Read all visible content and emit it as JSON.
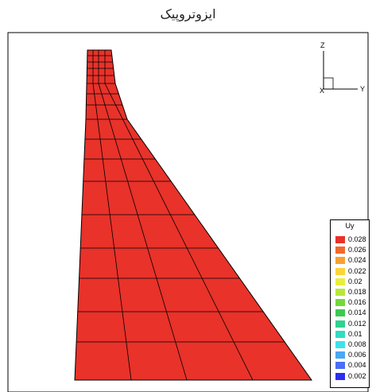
{
  "title": "ایزوتروپیک",
  "triad": {
    "z": "Z",
    "y": "Y",
    "x": "X"
  },
  "legend": {
    "title": "Uy",
    "entries": [
      {
        "label": "0.028",
        "color": "#e8322a"
      },
      {
        "label": "0.026",
        "color": "#f36a2a"
      },
      {
        "label": "0.024",
        "color": "#f8a032"
      },
      {
        "label": "0.022",
        "color": "#fbd53a"
      },
      {
        "label": "0.02",
        "color": "#e9ee3c"
      },
      {
        "label": "0.018",
        "color": "#b7e63c"
      },
      {
        "label": "0.016",
        "color": "#74d83c"
      },
      {
        "label": "0.014",
        "color": "#3cc950"
      },
      {
        "label": "0.012",
        "color": "#2fd28f"
      },
      {
        "label": "0.01",
        "color": "#30dcc2"
      },
      {
        "label": "0.008",
        "color": "#3ee2ea"
      },
      {
        "label": "0.006",
        "color": "#4aa8f5"
      },
      {
        "label": "0.004",
        "color": "#4a6ef8"
      },
      {
        "label": "0.002",
        "color": "#2a2ef2"
      }
    ]
  },
  "contour_bands": [
    {
      "color": "#e8322a"
    },
    {
      "color": "#f36a2a"
    },
    {
      "color": "#f8a032"
    },
    {
      "color": "#fbd53a"
    },
    {
      "color": "#e9ee3c"
    },
    {
      "color": "#b7e63c"
    },
    {
      "color": "#74d83c"
    },
    {
      "color": "#3cc950"
    },
    {
      "color": "#2fd28f"
    },
    {
      "color": "#30dcc2"
    },
    {
      "color": "#3ee2ea"
    },
    {
      "color": "#4ec6f2"
    },
    {
      "color": "#4a92f5"
    },
    {
      "color": "#5a6ef0"
    }
  ]
}
